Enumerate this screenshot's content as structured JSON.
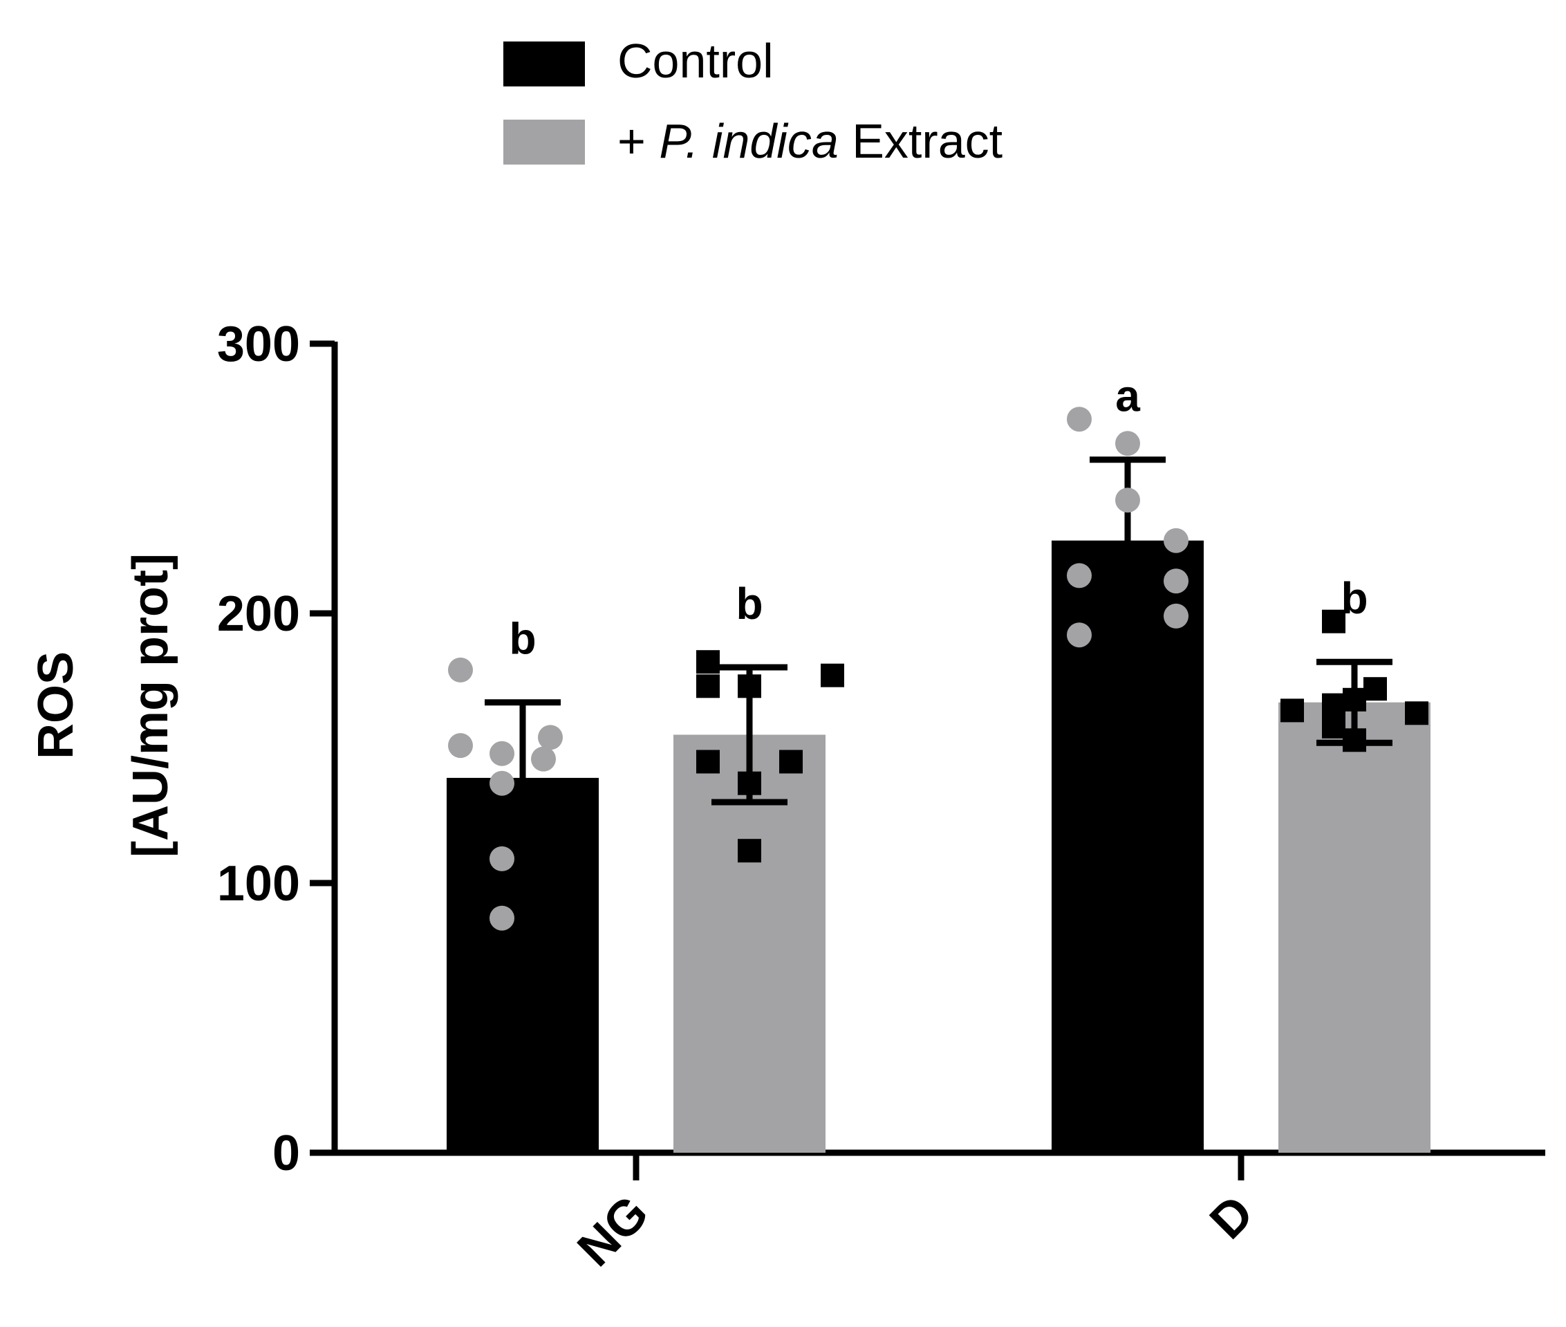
{
  "legend": {
    "items": [
      {
        "label": "Control",
        "color": "#000000"
      },
      {
        "prefix": "+ ",
        "italic": "P. indica",
        "suffix": " Extract",
        "color": "#a3a3a6"
      }
    ]
  },
  "chart_data": {
    "type": "bar",
    "title": "",
    "ylabel_line1": "ROS",
    "ylabel_line2": "[AU/mg prot]",
    "xlabel": "",
    "ylim": [
      0,
      300
    ],
    "yticks": [
      0,
      100,
      200,
      300
    ],
    "categories": [
      "NG",
      "D"
    ],
    "grid": false,
    "legend_position": "top-center",
    "series": [
      {
        "name": "Control",
        "color": "#000000",
        "point_color": "#a3a3a6",
        "marker": "circle",
        "values": [
          139,
          227
        ],
        "errors": [
          28,
          30
        ],
        "letters": [
          "b",
          "a"
        ],
        "points": [
          [
            179,
            154,
            151,
            148,
            146,
            137,
            109,
            87
          ],
          [
            272,
            263,
            242,
            227,
            214,
            212,
            199,
            192
          ]
        ]
      },
      {
        "name": "+ P. indica Extract",
        "color": "#a3a3a6",
        "point_color": "#000000",
        "marker": "square",
        "values": [
          155,
          167
        ],
        "errors": [
          25,
          15
        ],
        "letters": [
          "b",
          "b"
        ],
        "points": [
          [
            182,
            177,
            173,
            173,
            145,
            145,
            137,
            112
          ],
          [
            197,
            172,
            168,
            166,
            164,
            163,
            158,
            153
          ]
        ]
      }
    ]
  }
}
